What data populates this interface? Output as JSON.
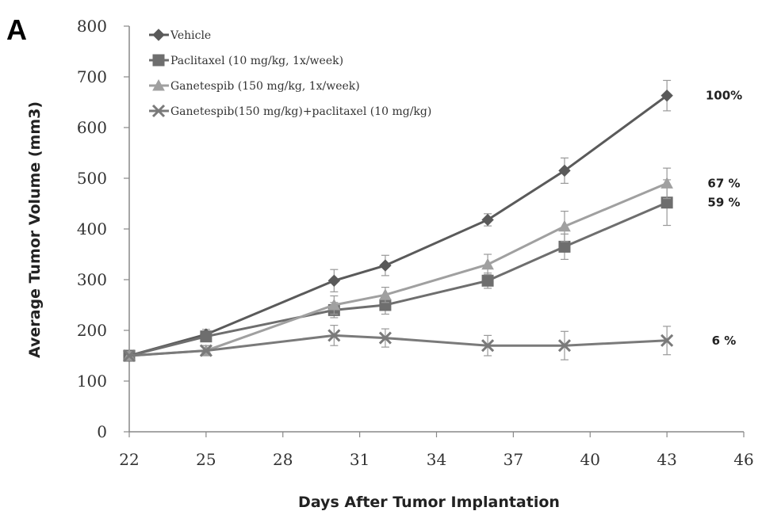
{
  "panel_label": "A",
  "chart_data": {
    "type": "line",
    "title": "",
    "xlabel": "Days After Tumor Implantation",
    "ylabel": "Average Tumor Volume (mm3)",
    "xlim": [
      22,
      46
    ],
    "ylim": [
      0,
      800
    ],
    "xticks": [
      22,
      25,
      28,
      31,
      34,
      37,
      40,
      43,
      46
    ],
    "yticks": [
      0,
      100,
      200,
      300,
      400,
      500,
      600,
      700,
      800
    ],
    "grid": false,
    "legend_position": "top-left",
    "series": [
      {
        "name": "Vehicle",
        "color": "#5a5a5a",
        "marker": "diamond",
        "x": [
          22,
          25,
          30,
          32,
          36,
          39,
          43
        ],
        "y": [
          150,
          192,
          298,
          328,
          418,
          515,
          663
        ],
        "err": [
          8,
          10,
          22,
          20,
          12,
          25,
          30
        ],
        "end_label": "100%"
      },
      {
        "name": "Paclitaxel (10 mg/kg, 1x/week)",
        "color": "#6e6e6e",
        "marker": "square",
        "x": [
          22,
          25,
          30,
          32,
          36,
          39,
          43
        ],
        "y": [
          150,
          188,
          240,
          250,
          298,
          365,
          452
        ],
        "err": [
          8,
          10,
          15,
          18,
          15,
          25,
          45
        ],
        "end_label": "59 %"
      },
      {
        "name": "Ganetespib (150 mg/kg, 1x/week)",
        "color": "#a0a0a0",
        "marker": "triangle",
        "x": [
          22,
          25,
          30,
          32,
          36,
          39,
          43
        ],
        "y": [
          150,
          160,
          250,
          270,
          330,
          405,
          490
        ],
        "err": [
          8,
          10,
          18,
          15,
          20,
          30,
          30
        ],
        "end_label": "67 %"
      },
      {
        "name": "Ganetespib(150 mg/kg)+paclitaxel (10 mg/kg)",
        "color": "#7a7a7a",
        "marker": "x",
        "x": [
          22,
          25,
          30,
          32,
          36,
          39,
          43
        ],
        "y": [
          150,
          160,
          190,
          185,
          170,
          170,
          180
        ],
        "err": [
          8,
          10,
          20,
          18,
          20,
          28,
          28
        ],
        "end_label": "6 %"
      }
    ]
  }
}
